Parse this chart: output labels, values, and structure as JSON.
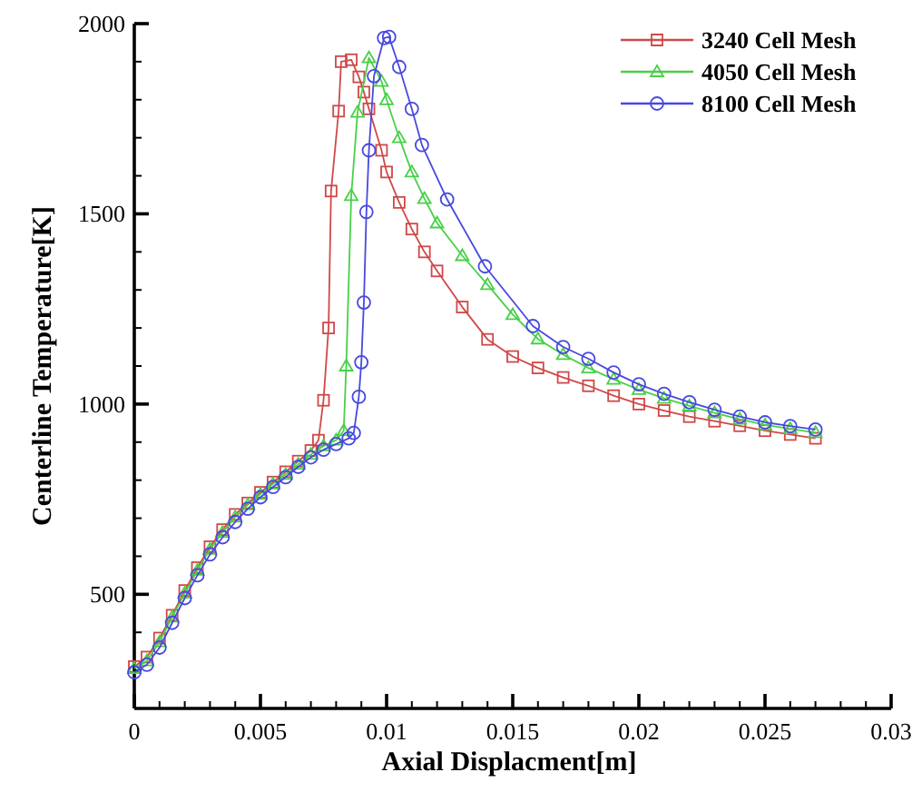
{
  "chart_data": {
    "type": "line",
    "xlabel": "Axial Displacment[m]",
    "ylabel": "Centerline Temperature[K]",
    "xlim": [
      0,
      0.03
    ],
    "ylim": [
      200,
      2000
    ],
    "xticks": [
      0,
      {
        "value": 0.001,
        "label": null
      },
      {
        "value": 0.002,
        "label": null
      },
      {
        "value": 0.003,
        "label": null
      },
      {
        "value": 0.004,
        "label": null
      },
      0.005,
      {
        "value": 0.006,
        "label": null
      },
      {
        "value": 0.007,
        "label": null
      },
      {
        "value": 0.008,
        "label": null
      },
      {
        "value": 0.009,
        "label": null
      },
      0.01,
      {
        "value": 0.011,
        "label": null
      },
      {
        "value": 0.012,
        "label": null
      },
      {
        "value": 0.013,
        "label": null
      },
      {
        "value": 0.014,
        "label": null
      },
      0.015,
      {
        "value": 0.016,
        "label": null
      },
      {
        "value": 0.017,
        "label": null
      },
      {
        "value": 0.018,
        "label": null
      },
      {
        "value": 0.019,
        "label": null
      },
      0.02,
      {
        "value": 0.021,
        "label": null
      },
      {
        "value": 0.022,
        "label": null
      },
      {
        "value": 0.023,
        "label": null
      },
      {
        "value": 0.024,
        "label": null
      },
      0.025,
      {
        "value": 0.026,
        "label": null
      },
      {
        "value": 0.027,
        "label": null
      },
      {
        "value": 0.028,
        "label": null
      },
      {
        "value": 0.029,
        "label": null
      },
      0.03
    ],
    "yticks": [
      {
        "value": 300,
        "label": null
      },
      {
        "value": 400,
        "label": null
      },
      500,
      {
        "value": 600,
        "label": null
      },
      {
        "value": 700,
        "label": null
      },
      {
        "value": 800,
        "label": null
      },
      {
        "value": 900,
        "label": null
      },
      1000,
      {
        "value": 1100,
        "label": null
      },
      {
        "value": 1200,
        "label": null
      },
      {
        "value": 1300,
        "label": null
      },
      {
        "value": 1400,
        "label": null
      },
      1500,
      {
        "value": 1600,
        "label": null
      },
      {
        "value": 1700,
        "label": null
      },
      {
        "value": 1800,
        "label": null
      },
      {
        "value": 1900,
        "label": null
      },
      2000
    ],
    "grid": false,
    "legend": "top right",
    "line_style": "solid",
    "series": [
      {
        "name": "3240 Cell Mesh",
        "color": "#d04848",
        "marker": "square",
        "x": [
          0,
          0.0005,
          0.001,
          0.0015,
          0.002,
          0.0025,
          0.003,
          0.0035,
          0.004,
          0.0045,
          0.005,
          0.0055,
          0.006,
          0.0065,
          0.007,
          0.0073,
          0.0075,
          0.0077,
          0.0078,
          0.0081,
          0.0082,
          0.0086,
          0.0089,
          0.0091,
          0.0093,
          0.0098,
          0.01,
          0.0105,
          0.011,
          0.0115,
          0.012,
          0.013,
          0.014,
          0.015,
          0.016,
          0.017,
          0.018,
          0.019,
          0.02,
          0.021,
          0.022,
          0.023,
          0.024,
          0.025,
          0.026,
          0.027
        ],
        "values": [
          310,
          335,
          385,
          445,
          510,
          570,
          625,
          670,
          710,
          740,
          768,
          795,
          822,
          850,
          878,
          905,
          1010,
          1200,
          1560,
          1770,
          1900,
          1905,
          1860,
          1820,
          1776,
          1667,
          1610,
          1530,
          1460,
          1400,
          1350,
          1255,
          1170,
          1125,
          1095,
          1070,
          1048,
          1022,
          1000,
          983,
          967,
          955,
          943,
          930,
          920,
          910
        ]
      },
      {
        "name": "4050 Cell Mesh",
        "color": "#48d048",
        "marker": "triangle",
        "x": [
          0,
          0.0005,
          0.001,
          0.0015,
          0.002,
          0.0025,
          0.003,
          0.0035,
          0.004,
          0.0045,
          0.005,
          0.0055,
          0.006,
          0.0065,
          0.007,
          0.0075,
          0.008,
          0.0083,
          0.0084,
          0.0086,
          0.00885,
          0.0093,
          0.0098,
          0.01,
          0.0105,
          0.011,
          0.0115,
          0.012,
          0.013,
          0.014,
          0.015,
          0.016,
          0.017,
          0.018,
          0.019,
          0.02,
          0.021,
          0.022,
          0.023,
          0.024,
          0.025,
          0.026,
          0.027
        ],
        "values": [
          305,
          325,
          375,
          440,
          503,
          563,
          618,
          663,
          703,
          735,
          763,
          790,
          815,
          842,
          868,
          890,
          905,
          930,
          1100,
          1548,
          1767,
          1910,
          1848,
          1800,
          1700,
          1610,
          1540,
          1476,
          1390,
          1314,
          1235,
          1171,
          1130,
          1095,
          1065,
          1038,
          1015,
          995,
          977,
          960,
          945,
          935,
          925
        ]
      },
      {
        "name": "8100 Cell Mesh",
        "color": "#4848e0",
        "marker": "circle",
        "x": [
          0,
          0.0005,
          0.001,
          0.0015,
          0.002,
          0.0025,
          0.003,
          0.0035,
          0.004,
          0.0045,
          0.005,
          0.0055,
          0.006,
          0.0065,
          0.007,
          0.0075,
          0.008,
          0.0085,
          0.0087,
          0.0089,
          0.009,
          0.0091,
          0.0092,
          0.0093,
          0.0095,
          0.0099,
          0.0101,
          0.0105,
          0.011,
          0.0114,
          0.0124,
          0.0139,
          0.0158,
          0.017,
          0.018,
          0.019,
          0.02,
          0.021,
          0.022,
          0.023,
          0.024,
          0.025,
          0.026,
          0.027
        ],
        "values": [
          295,
          315,
          360,
          425,
          490,
          550,
          605,
          650,
          690,
          725,
          755,
          782,
          808,
          835,
          860,
          880,
          895,
          910,
          924,
          1019,
          1110,
          1267,
          1505,
          1667,
          1862,
          1962,
          1965,
          1886,
          1776,
          1681,
          1538,
          1362,
          1205,
          1150,
          1119,
          1083,
          1052,
          1027,
          1005,
          985,
          967,
          952,
          942,
          933
        ]
      }
    ]
  }
}
